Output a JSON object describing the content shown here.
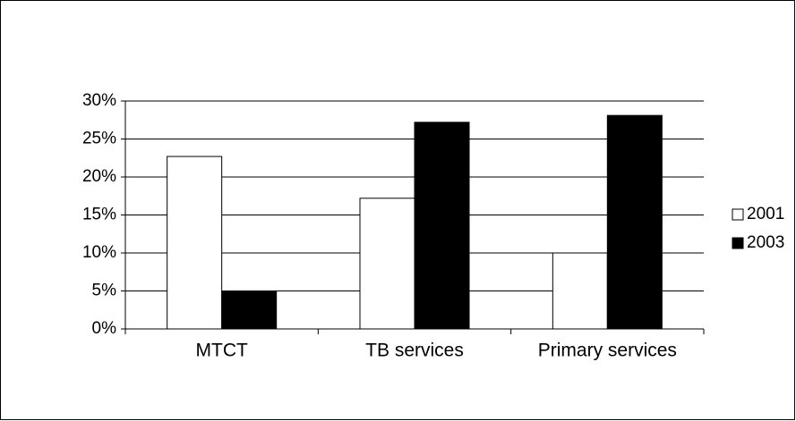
{
  "chart_data": {
    "type": "bar",
    "categories": [
      "MTCT",
      "TB services",
      "Primary services"
    ],
    "series": [
      {
        "name": "2001",
        "color": "#ffffff",
        "values": [
          22.7,
          17.2,
          10
        ]
      },
      {
        "name": "2003",
        "color": "#000000",
        "values": [
          5,
          27.2,
          28.1
        ]
      }
    ],
    "ylim": [
      0,
      30
    ],
    "yticks": [
      {
        "value": 0,
        "label": "0%"
      },
      {
        "value": 5,
        "label": "5%"
      },
      {
        "value": 10,
        "label": "10%"
      },
      {
        "value": 15,
        "label": "15%"
      },
      {
        "value": 20,
        "label": "20%"
      },
      {
        "value": 25,
        "label": "25%"
      },
      {
        "value": 30,
        "label": "30%"
      }
    ],
    "grid": true,
    "legend": "right"
  }
}
